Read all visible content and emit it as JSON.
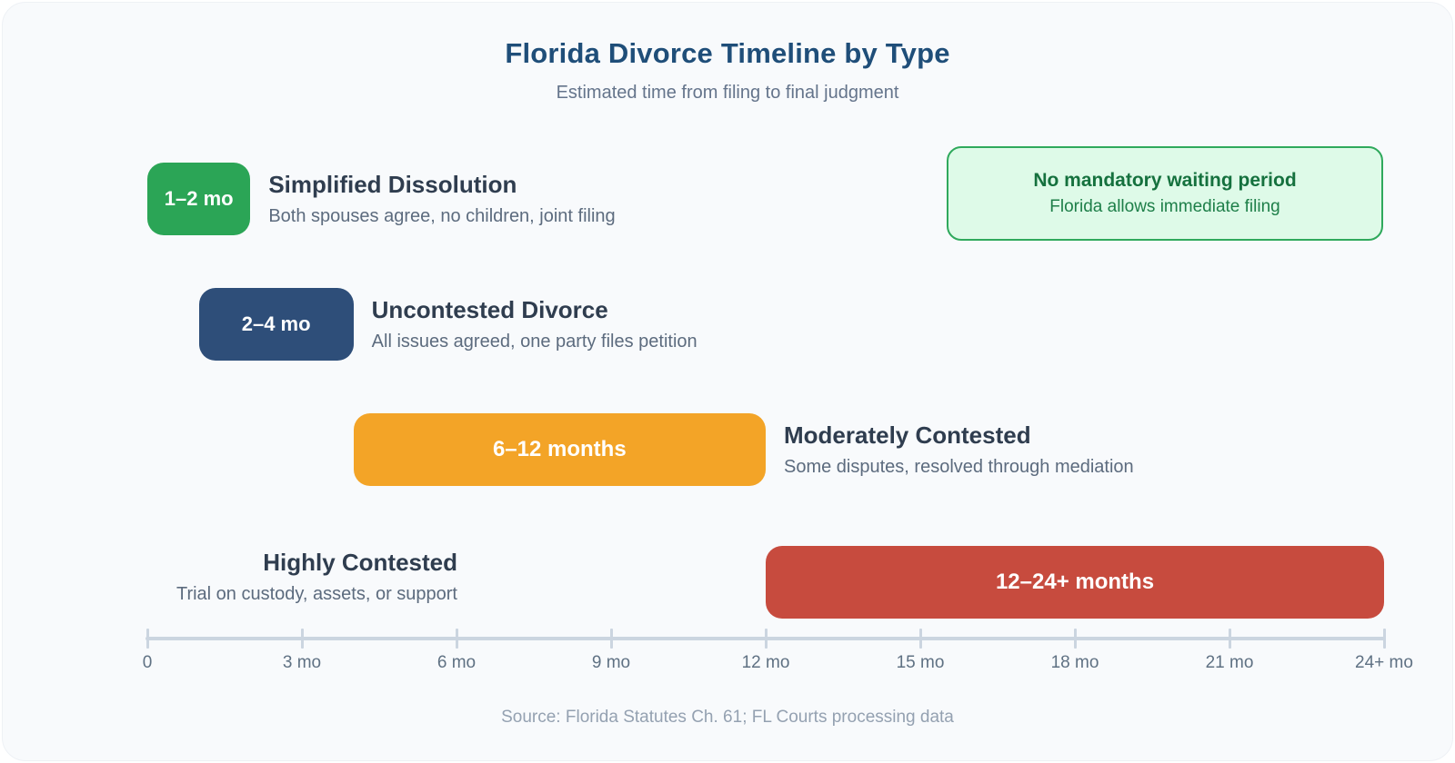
{
  "chart_data": {
    "type": "bar",
    "variant": "horizontal-timeline",
    "title": "Florida Divorce Timeline by Type",
    "subtitle": "Estimated time from filing to final judgment",
    "unit": "months",
    "axis": {
      "min": 0,
      "max": 24,
      "tick_interval": 3,
      "ticks": [
        {
          "label": "0",
          "month": 0
        },
        {
          "label": "3 mo",
          "month": 3
        },
        {
          "label": "6 mo",
          "month": 6
        },
        {
          "label": "9 mo",
          "month": 9
        },
        {
          "label": "12 mo",
          "month": 12
        },
        {
          "label": "15 mo",
          "month": 15
        },
        {
          "label": "18 mo",
          "month": 18
        },
        {
          "label": "21 mo",
          "month": 21
        },
        {
          "label": "24+ mo",
          "month": 24
        }
      ]
    },
    "rows": [
      {
        "name": "Simplified Dissolution",
        "description": "Both spouses agree, no children, joint filing",
        "duration_label": "1–2 mo",
        "duration_months": [
          1,
          2
        ],
        "bar_months": [
          0,
          2
        ],
        "color": "#2ba556",
        "label_side": "right"
      },
      {
        "name": "Uncontested Divorce",
        "description": "All issues agreed, one party files petition",
        "duration_label": "2–4 mo",
        "duration_months": [
          2,
          4
        ],
        "bar_months": [
          1,
          4
        ],
        "color": "#2e4e79",
        "label_side": "right"
      },
      {
        "name": "Moderately Contested",
        "description": "Some disputes, resolved through mediation",
        "duration_label": "6–12 months",
        "duration_months": [
          6,
          12
        ],
        "bar_months": [
          4,
          12
        ],
        "color": "#f3a427",
        "label_side": "right"
      },
      {
        "name": "Highly Contested",
        "description": "Trial on custody, assets, or support",
        "duration_label": "12–24+ months",
        "duration_months": [
          12,
          24
        ],
        "bar_months": [
          12,
          24
        ],
        "color": "#c74b3e",
        "label_side": "left"
      }
    ],
    "source": "Source: Florida Statutes Ch. 61; FL Courts processing data"
  },
  "callout": {
    "title": "No mandatory waiting period",
    "description": "Florida allows immediate filing",
    "bg_color": "#defae8",
    "border_color": "#2fa95c",
    "title_color": "#15713e",
    "desc_color": "#1e7f49"
  },
  "colors": {
    "page_title": "#1f4e79",
    "subtitle": "#64748b",
    "row_title": "#2f3d4f",
    "row_desc": "#5c6b7e",
    "axis": "#cbd5e0",
    "tick_label": "#5f7183",
    "footer": "#94a1b1",
    "card_bg": "#f8fafc"
  }
}
